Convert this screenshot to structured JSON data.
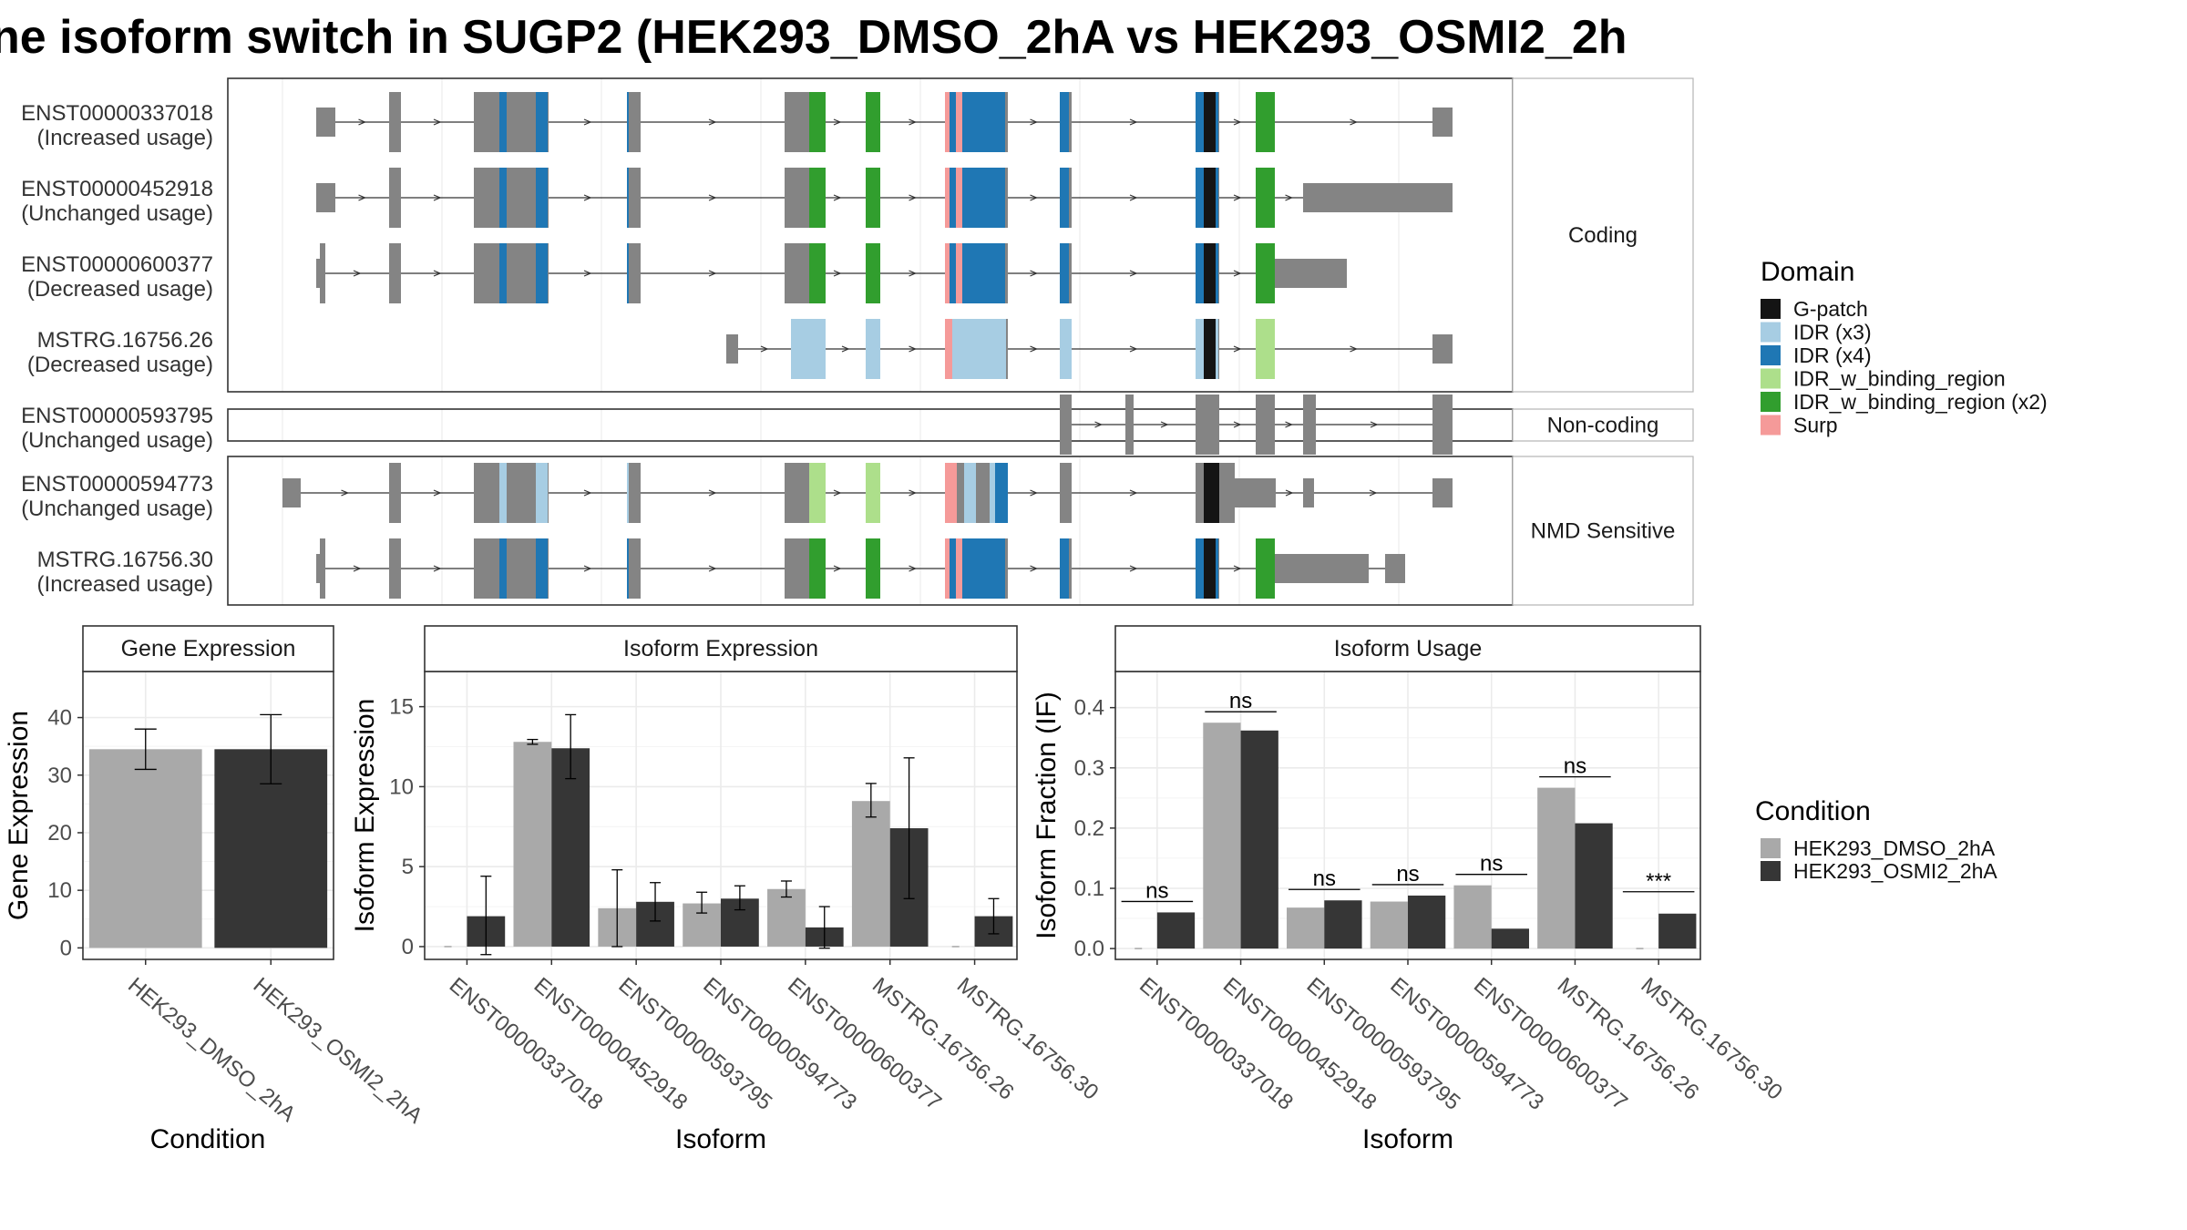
{
  "title": "ne isoform switch in SUGP2 (HEK293_DMSO_2hA vs HEK293_OSMI2_2h",
  "colors": {
    "exon": "#848484",
    "DMSO": "#a9a9a9",
    "OSMI2": "#363636",
    "domain_colors": [
      "#141414",
      "#a7cde3",
      "#1f77b4",
      "#addf8b",
      "#319e2e",
      "#f59a99"
    ]
  },
  "transcripts": {
    "isoforms": [
      {
        "id": "ENST00000337018",
        "status": "(Increased usage)",
        "group": 0
      },
      {
        "id": "ENST00000452918",
        "status": "(Unchanged usage)",
        "group": 0
      },
      {
        "id": "ENST00000600377",
        "status": "(Decreased usage)",
        "group": 0
      },
      {
        "id": "MSTRG.16756.26",
        "status": "(Decreased usage)",
        "group": 0
      },
      {
        "id": "ENST00000593795",
        "status": "(Unchanged usage)",
        "group": 1
      },
      {
        "id": "ENST00000594773",
        "status": "(Unchanged usage)",
        "group": 2
      },
      {
        "id": "MSTRG.16756.30",
        "status": "(Increased usage)",
        "group": 2
      }
    ],
    "groups": [
      "Coding",
      "Non-coding",
      "NMD Sensitive"
    ]
  },
  "domain_legend": {
    "title": "Domain",
    "items": [
      "G-patch",
      "IDR (x3)",
      "IDR (x4)",
      "IDR_w_binding_region",
      "IDR_w_binding_region (x2)",
      "Surp"
    ]
  },
  "condition_legend": {
    "title": "Condition",
    "items": [
      "HEK293_DMSO_2hA",
      "HEK293_OSMI2_2hA"
    ]
  },
  "chart_data": [
    {
      "type": "bar",
      "title": "Gene Expression",
      "xlabel": "Condition",
      "ylabel": "Gene Expression",
      "categories": [
        "HEK293_DMSO_2hA",
        "HEK293_OSMI2_2hA"
      ],
      "values": [
        34.5,
        34.5
      ],
      "error_bars": [
        [
          31,
          38
        ],
        [
          28.5,
          40.5
        ]
      ],
      "ylim": [
        -2,
        48
      ],
      "yticks": [
        0,
        10,
        20,
        30,
        40
      ]
    },
    {
      "type": "bar",
      "title": "Isoform Expression",
      "xlabel": "Isoform",
      "ylabel": "Isoform Expression",
      "categories": [
        "ENST00000337018",
        "ENST00000452918",
        "ENST00000593795",
        "ENST00000594773",
        "ENST00000600377",
        "MSTRG.16756.26",
        "MSTRG.16756.30"
      ],
      "series": [
        {
          "name": "HEK293_DMSO_2hA",
          "values": [
            0,
            12.8,
            2.4,
            2.7,
            3.6,
            9.1,
            0
          ],
          "error_bars": [
            [
              0,
              0
            ],
            [
              12.65,
              12.95
            ],
            [
              0,
              4.8
            ],
            [
              2.1,
              3.4
            ],
            [
              3.1,
              4.1
            ],
            [
              8.1,
              10.2
            ],
            [
              0,
              0
            ]
          ]
        },
        {
          "name": "HEK293_OSMI2_2hA",
          "values": [
            1.9,
            12.4,
            2.8,
            3.0,
            1.2,
            7.4,
            1.9
          ],
          "error_bars": [
            [
              -0.5,
              4.4
            ],
            [
              10.5,
              14.5
            ],
            [
              1.6,
              4.0
            ],
            [
              2.3,
              3.8
            ],
            [
              -0.1,
              2.5
            ],
            [
              3.0,
              11.8
            ],
            [
              0.8,
              3.0
            ]
          ]
        }
      ],
      "ylim": [
        -0.8,
        17.2
      ],
      "yticks": [
        0,
        5,
        10,
        15
      ]
    },
    {
      "type": "bar",
      "title": "Isoform Usage",
      "xlabel": "Isoform",
      "ylabel": "Isoform Fraction (IF)",
      "categories": [
        "ENST00000337018",
        "ENST00000452918",
        "ENST00000593795",
        "ENST00000594773",
        "ENST00000600377",
        "MSTRG.16756.26",
        "MSTRG.16756.30"
      ],
      "series": [
        {
          "name": "HEK293_DMSO_2hA",
          "values": [
            0,
            0.375,
            0.068,
            0.078,
            0.105,
            0.267,
            0
          ]
        },
        {
          "name": "HEK293_OSMI2_2hA",
          "values": [
            0.06,
            0.362,
            0.08,
            0.088,
            0.033,
            0.208,
            0.058
          ]
        }
      ],
      "significance": [
        "ns",
        "ns",
        "ns",
        "ns",
        "ns",
        "ns",
        "***"
      ],
      "ylim": [
        -0.018,
        0.46
      ],
      "yticks": [
        0.0,
        0.1,
        0.2,
        0.3,
        0.4
      ],
      "ytick_labels": [
        "0.0",
        "0.1",
        "0.2",
        "0.3",
        "0.4"
      ]
    }
  ]
}
